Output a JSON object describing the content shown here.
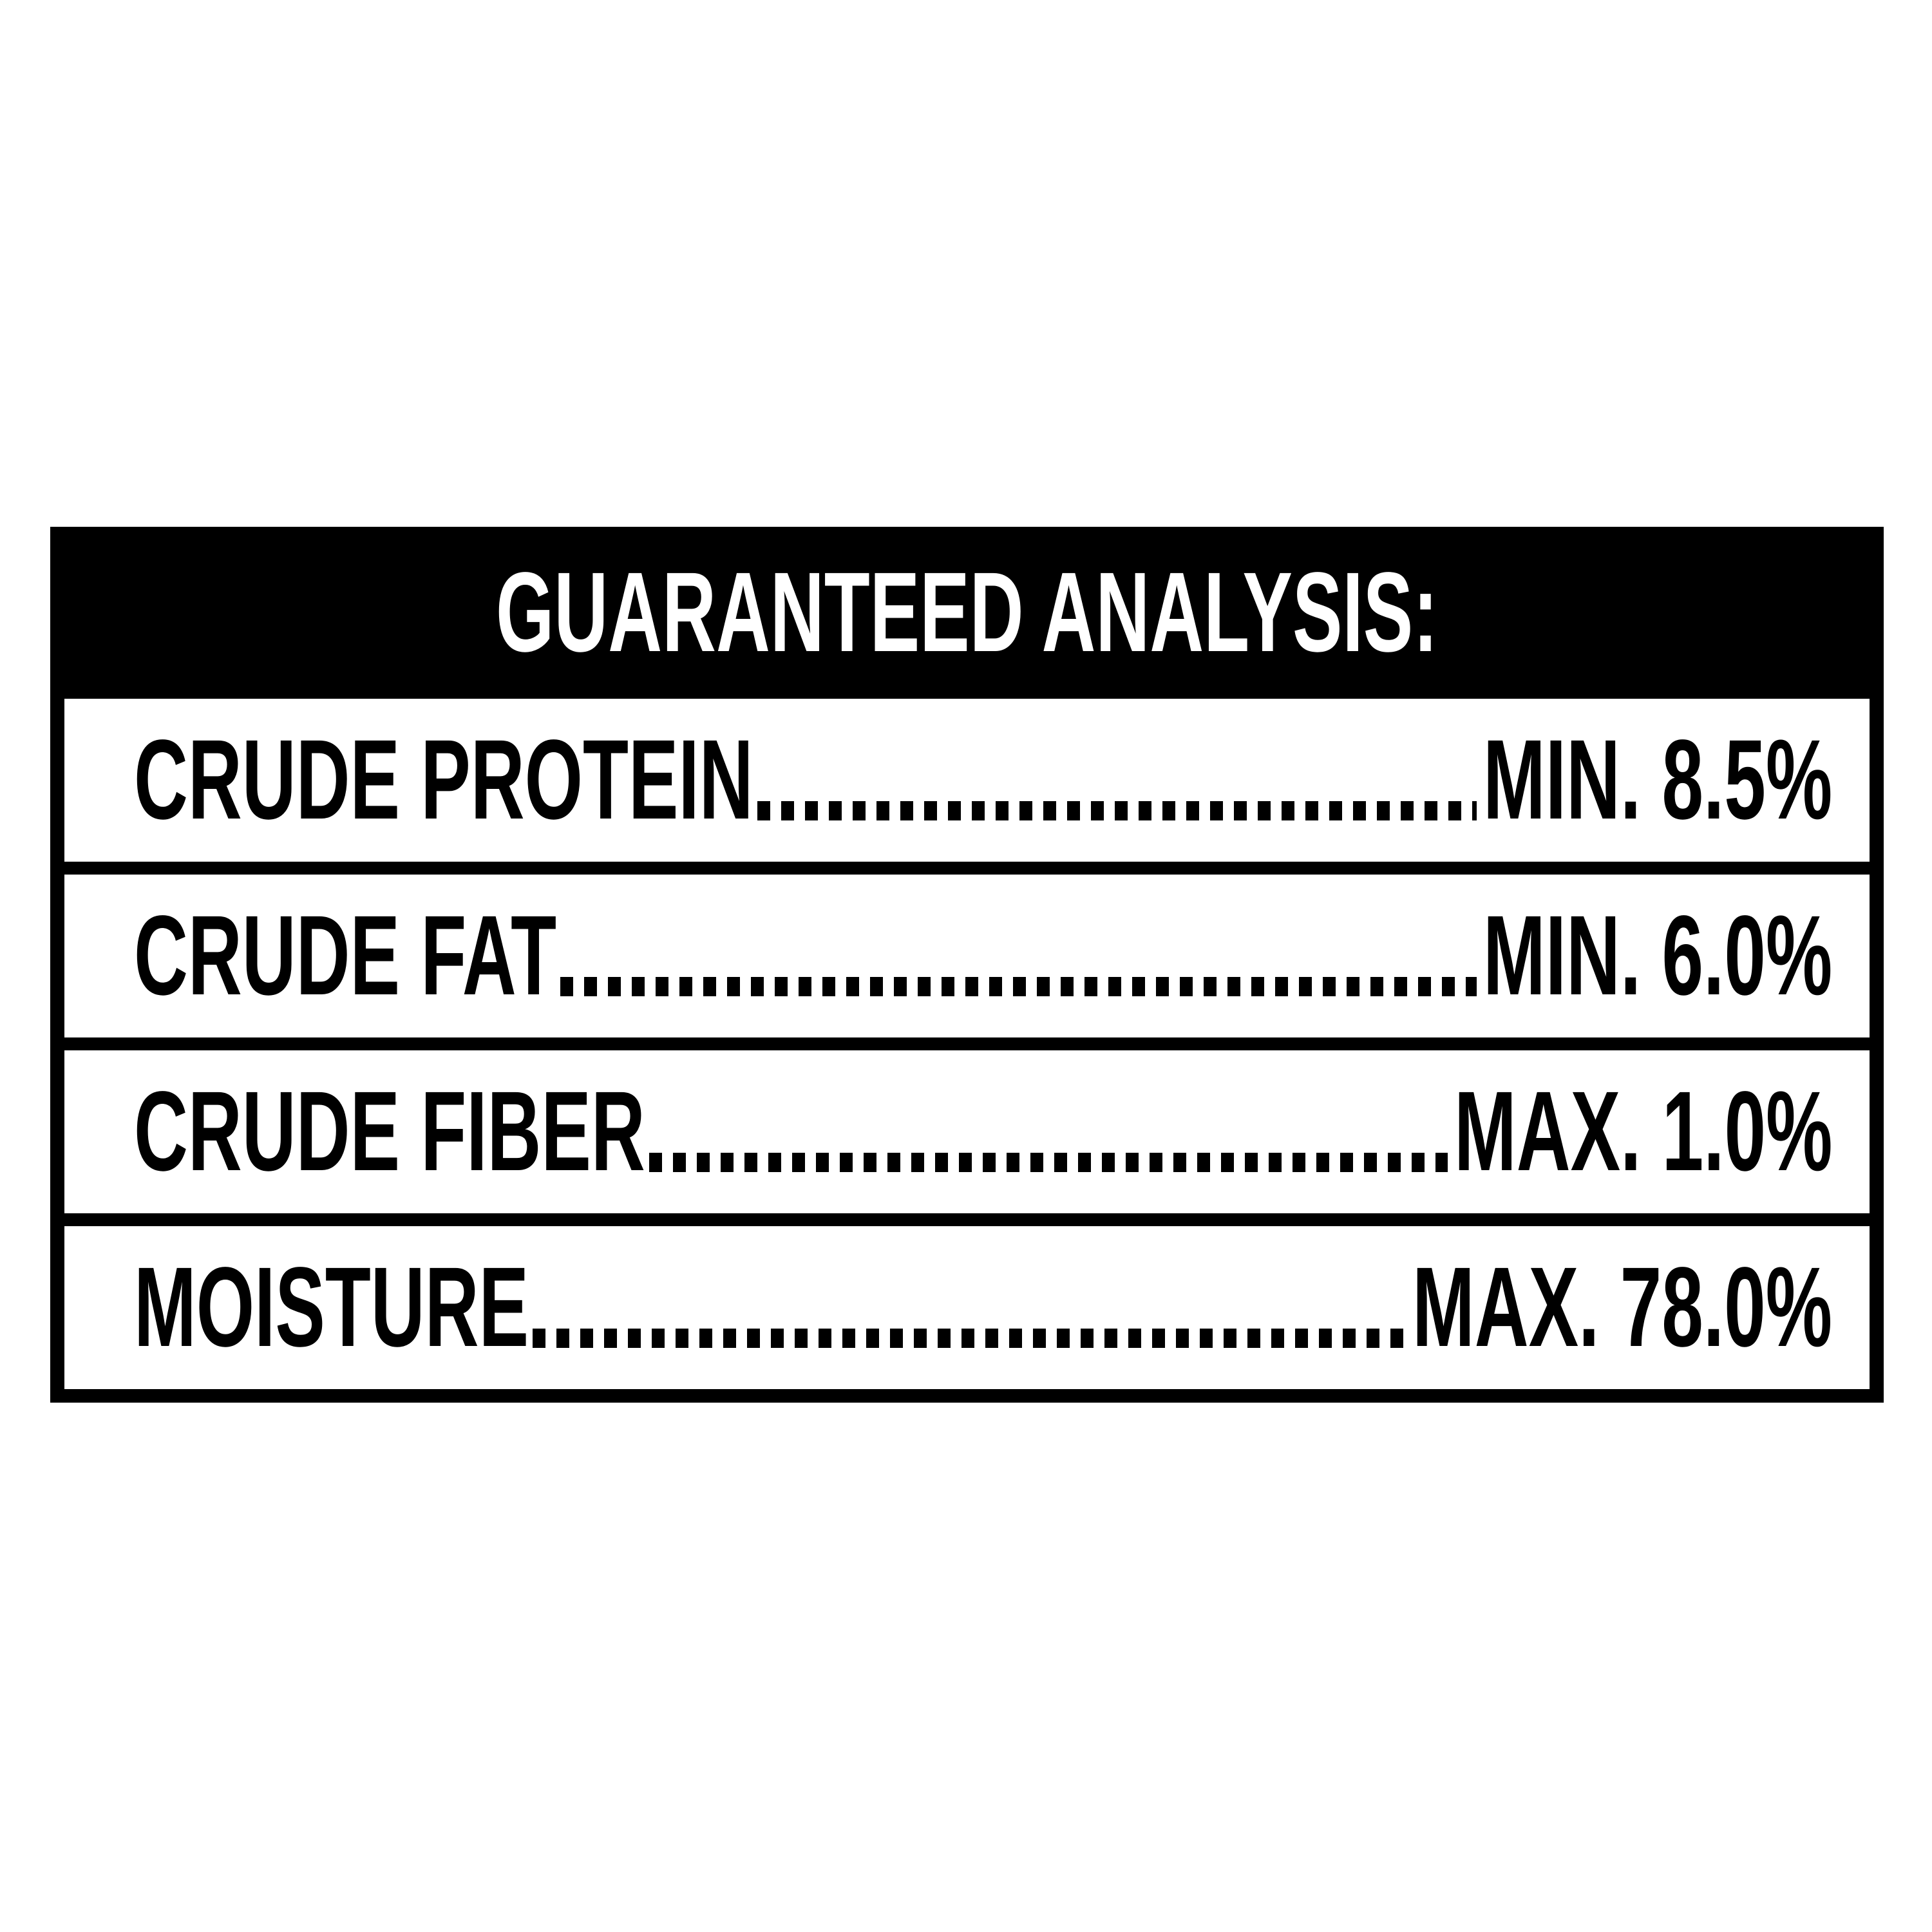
{
  "table": {
    "header": {
      "title": "GUARANTEED ANALYSIS:"
    },
    "rows": [
      {
        "label": "CRUDE PROTEIN",
        "value": "MIN. 8.5%"
      },
      {
        "label": "CRUDE FAT",
        "value": "MIN. 6.0%"
      },
      {
        "label": "CRUDE FIBER",
        "value": "MAX. 1.0%"
      },
      {
        "label": "MOISTURE",
        "value": "MAX. 78.0%"
      }
    ],
    "colors": {
      "frame": "#000000",
      "row_background": "#ffffff",
      "header_text": "#ffffff",
      "row_text": "#000000"
    }
  }
}
